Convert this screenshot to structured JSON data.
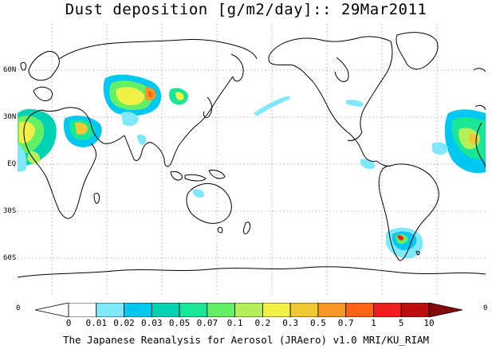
{
  "title": "Dust deposition [g/m2/day]:: 29Mar2011",
  "lat_labels": [
    "60N",
    "30N",
    "EQ",
    "30S",
    "60S"
  ],
  "colorbar": {
    "edge_left": "0",
    "edge_right": "0",
    "labels": [
      "0",
      "0.01",
      "0.02",
      "0.03",
      "0.05",
      "0.07",
      "0.1",
      "0.2",
      "0.3",
      "0.5",
      "0.7",
      "1",
      "5",
      "10"
    ],
    "colors": [
      "#ffffff",
      "#ffffff",
      "#7fe8fa",
      "#00c8f0",
      "#00d2b4",
      "#19e696",
      "#64f064",
      "#b4f05a",
      "#f0f046",
      "#f0c832",
      "#fa9628",
      "#ff6414",
      "#f01e1e",
      "#be0f0f",
      "#820a0a"
    ]
  },
  "credit": "The Japanese Reanalysis for Aerosol (JRAero) v1.0 MRI/KU_RIAM"
}
